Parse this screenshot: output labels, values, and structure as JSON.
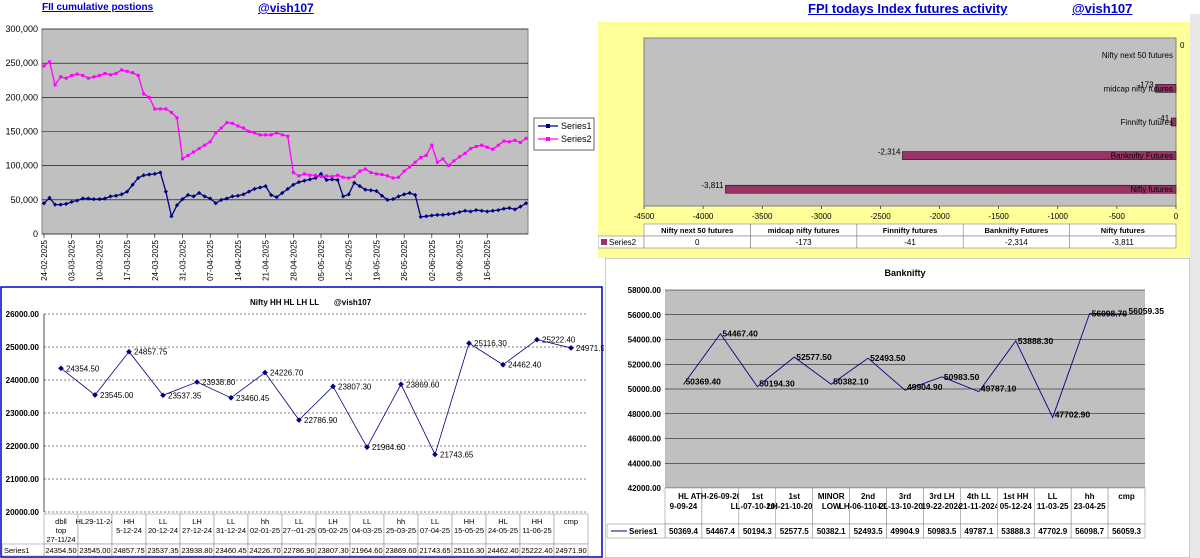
{
  "headers": {
    "fii_title": "FII cumulative postions",
    "fii_handle": "@vish107",
    "fpi_title": "FPI todays Index futures activity",
    "fpi_handle": "@vish107"
  },
  "colors": {
    "series1": "#000080",
    "series2": "#ff00ff",
    "bar": "#993366",
    "plot_gray": "#c0c0c0",
    "panel_yellow": "#ffff99",
    "header_blue": "#0000cc"
  },
  "chart_data": [
    {
      "id": "fii",
      "type": "line",
      "title": "",
      "ylim": [
        0,
        300000
      ],
      "yticks": [
        "0",
        "50,000",
        "100,000",
        "150,000",
        "200,000",
        "250,000",
        "300,000"
      ],
      "xticks": [
        "24-02-2025",
        "03-03-2025",
        "10-03-2025",
        "17-03-2025",
        "24-03-2025",
        "31-03-2025",
        "07-04-2025",
        "14-04-2025",
        "21-04-2025",
        "28-04-2025",
        "05-05-2025",
        "12-05-2025",
        "19-05-2025",
        "26-05-2025",
        "02-06-2025",
        "09-06-2025",
        "16-06-2025"
      ],
      "legend": "right",
      "series": [
        {
          "name": "Series1",
          "values": [
            45000,
            53000,
            43000,
            43000,
            44000,
            47000,
            49000,
            52000,
            52000,
            51000,
            51000,
            52000,
            55000,
            56000,
            58000,
            62000,
            72000,
            82000,
            86000,
            87000,
            88000,
            90000,
            62000,
            26000,
            42000,
            51000,
            57000,
            55000,
            60000,
            55000,
            52000,
            45000,
            50000,
            52000,
            55000,
            56000,
            58000,
            62000,
            66000,
            68000,
            70000,
            57000,
            54000,
            60000,
            66000,
            72000,
            76000,
            78000,
            80000,
            82000,
            88000,
            79000,
            80000,
            79000,
            55000,
            58000,
            75000,
            70000,
            65000,
            64000,
            63000,
            56000,
            50000,
            51000,
            55000,
            58000,
            60000,
            57000,
            25000,
            26000,
            27000,
            28000,
            28000,
            29000,
            30000,
            32000,
            34000,
            33000,
            35000,
            34000,
            33000,
            34000,
            35000,
            37000,
            38000,
            36000,
            40000,
            45000
          ]
        },
        {
          "name": "Series2",
          "values": [
            246000,
            252000,
            218000,
            230000,
            228000,
            232000,
            234000,
            232000,
            228000,
            230000,
            232000,
            235000,
            233000,
            235000,
            240000,
            238000,
            236000,
            232000,
            205000,
            200000,
            183000,
            183000,
            183000,
            178000,
            170000,
            110000,
            115000,
            120000,
            125000,
            130000,
            135000,
            148000,
            155000,
            163000,
            162000,
            158000,
            155000,
            150000,
            148000,
            145000,
            145000,
            145000,
            148000,
            145000,
            143000,
            90000,
            85000,
            88000,
            86000,
            86000,
            84000,
            85000,
            84000,
            86000,
            83000,
            82000,
            84000,
            92000,
            95000,
            90000,
            88000,
            87000,
            85000,
            82000,
            83000,
            92000,
            98000,
            105000,
            112000,
            115000,
            130000,
            105000,
            110000,
            100000,
            107000,
            113000,
            118000,
            125000,
            128000,
            130000,
            127000,
            124000,
            130000,
            136000,
            135000,
            137000,
            134000,
            140000
          ]
        }
      ]
    },
    {
      "id": "fpi",
      "type": "bar",
      "orientation": "horizontal",
      "title": "",
      "xlim": [
        -4500,
        0
      ],
      "xticks": [
        "-4500",
        "-4000",
        "-3500",
        "-3000",
        "-2500",
        "-2000",
        "-1500",
        "-1000",
        "-500",
        "0"
      ],
      "categories": [
        "Nifty futures",
        "Banknifty Futures",
        "Finnifty futures",
        "midcap nifty futures",
        "Nifty next 50 futures"
      ],
      "series": [
        {
          "name": "Series2",
          "values": [
            -3811,
            -2314,
            -41,
            -173,
            0
          ]
        }
      ],
      "value_labels": [
        "-3,811",
        "-2,314",
        "-41",
        "-173",
        "0"
      ]
    },
    {
      "id": "nifty",
      "type": "line",
      "title": "Nifty HH HL LH LL",
      "subtitle": "@vish107",
      "ylim": [
        20000,
        26000
      ],
      "yticks": [
        "20000.00",
        "21000.00",
        "22000.00",
        "23000.00",
        "24000.00",
        "25000.00",
        "26000.00"
      ],
      "categories": [
        "dbll top 27-11/24",
        "HL29-11-24",
        "HH 5-12-24",
        "LL 20-12-24",
        "LH 27-12-24",
        "LL 31-12-24",
        "hh 02-01-25",
        "LL 27--01-25",
        "LH 05-02-25",
        "LL 04-03-25",
        "hh 25-03-25",
        "LL 07-04-25",
        "HH 15-05-25",
        "HL 24-05-25",
        "HH 11-06-25",
        "cmp"
      ],
      "series": [
        {
          "name": "Series1",
          "values": [
            24354.5,
            23545,
            24857.75,
            23537.35,
            23938.8,
            23460.45,
            24226.7,
            22786.9,
            23807.3,
            21964.6,
            23869.6,
            21743.65,
            25116.3,
            24462.4,
            25222.4,
            24971.9
          ]
        }
      ],
      "data_labels": [
        "24354.50",
        "23545.00",
        "24857.75",
        "23537.35",
        "23938.80",
        "23460.45",
        "24226.70",
        "22786.90",
        "23807.30",
        "21964.60",
        "23869.60",
        "21743.65",
        "25116.30",
        "24462.40",
        "25222.40",
        "24971.90"
      ],
      "table_values": [
        "24354.50",
        "23545.00",
        "24857.75",
        "23537.35",
        "23938.80",
        "23460.45",
        "24226.70",
        "22786.90",
        "23807.30",
        "21964.60",
        "23869.60",
        "21743.65",
        "25116.30",
        "24462.40",
        "25222.40",
        "24971.90"
      ]
    },
    {
      "id": "banknifty",
      "type": "line",
      "title": "Banknifty",
      "ylim": [
        42000,
        58000
      ],
      "yticks": [
        "42000.00",
        "44000.00",
        "46000.00",
        "48000.00",
        "50000.00",
        "52000.00",
        "54000.00",
        "56000.00",
        "58000.00"
      ],
      "categories": [
        "HL 9-09-24",
        "ATH-26-09-2024",
        "1st LL-07-10-2024",
        "1st LH-21-10-2024",
        "MINOR LOW",
        "2nd LH-06-110-2024",
        "3rd LL-13-10-2024",
        "3rd LH 19-22-2024",
        "4th LL 21-11-2024",
        "1st HH 05-12-24",
        "LL 11-03-25",
        "hh 23-04-25",
        "cmp"
      ],
      "series": [
        {
          "name": "Series1",
          "values": [
            50369.4,
            54467.4,
            50194.3,
            52577.5,
            50382.1,
            52493.5,
            49904.9,
            50983.5,
            49787.1,
            53888.3,
            47702.9,
            56098.7,
            56059.35
          ]
        }
      ],
      "data_labels": [
        "50369.40",
        "54467.40",
        "50194.30",
        "52577.50",
        "50382.10",
        "52493.50",
        "49904.90",
        "50983.50",
        "49787.10",
        "53888.30",
        "47702.90",
        "56098.70",
        "56059.35"
      ],
      "table_values": [
        "50369.4",
        "54467.4",
        "50194.3",
        "52577.5",
        "50382.1",
        "52493.5",
        "49904.9",
        "50983.5",
        "49787.1",
        "53888.3",
        "47702.9",
        "56098.7",
        "56059.3"
      ]
    }
  ]
}
